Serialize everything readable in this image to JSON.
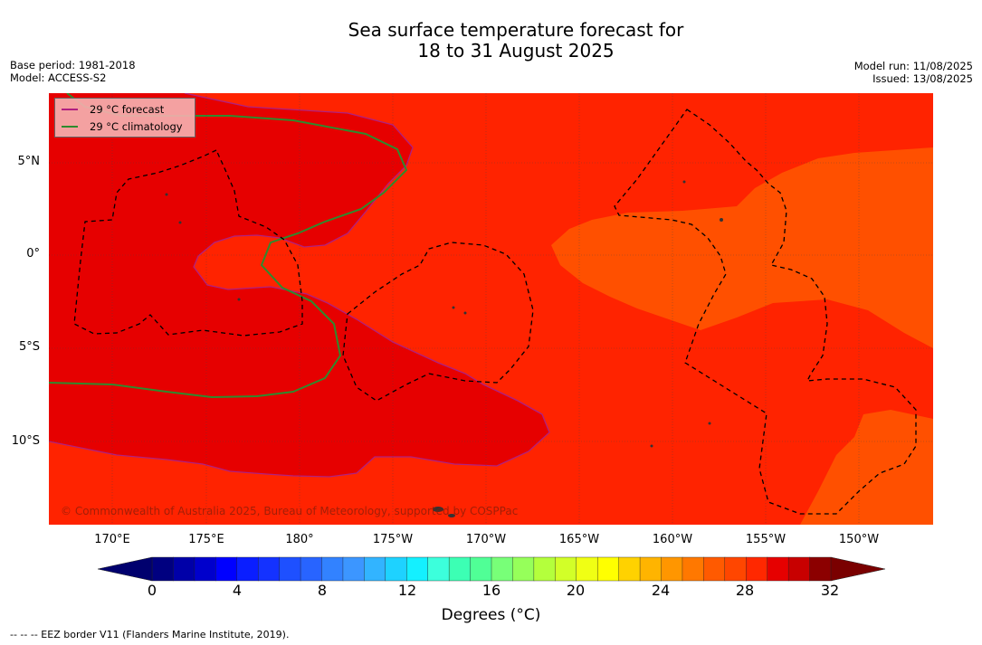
{
  "title_line1": "Sea surface temperature forecast for",
  "title_line2": "18 to 31 August 2025",
  "base_period": "Base period: 1981-2018",
  "model": "Model: ACCESS-S2",
  "model_run": "Model run: 11/08/2025",
  "issued": "Issued: 13/08/2025",
  "legend": {
    "forecast_label": "29 °C  forecast",
    "forecast_color": "#b02080",
    "climatology_label": "29 °C  climatology",
    "climatology_color": "#2e8b2e"
  },
  "lat_labels": [
    "5°N",
    "0°",
    "5°S",
    "10°S"
  ],
  "lon_labels": [
    "170°E",
    "175°E",
    "180°",
    "175°W",
    "170°W",
    "165°W",
    "160°W",
    "155°W",
    "150°W"
  ],
  "colorbar": {
    "tick_labels": [
      "0",
      "4",
      "8",
      "12",
      "16",
      "20",
      "24",
      "28",
      "32"
    ],
    "label": "Degrees (°C)",
    "colors": [
      "#000080",
      "#0000a8",
      "#0000cc",
      "#0000ff",
      "#0a1eff",
      "#1432ff",
      "#1e50ff",
      "#2864ff",
      "#3282ff",
      "#3c96ff",
      "#32b4ff",
      "#1ed2ff",
      "#14f0ff",
      "#3cffdc",
      "#3cffb4",
      "#50ff96",
      "#78ff78",
      "#96ff5a",
      "#b4ff3c",
      "#d2ff28",
      "#f0ff14",
      "#ffff00",
      "#ffd200",
      "#ffb400",
      "#ff9600",
      "#ff7800",
      "#ff5a00",
      "#ff4600",
      "#ff2800",
      "#e60000",
      "#c80000",
      "#8c0000"
    ],
    "under_color": "#00006e",
    "over_color": "#7a0000"
  },
  "map_colors": {
    "band_27_28": "#ff5000",
    "band_28_29": "#ff2300",
    "band_29_30": "#e60000"
  },
  "copyright": "© Commonwealth of Australia 2025, Bureau of Meteorology, supported by COSPPac",
  "footnote": "--  --  -- EEZ border V11 (Flanders Marine Institute, 2019)."
}
